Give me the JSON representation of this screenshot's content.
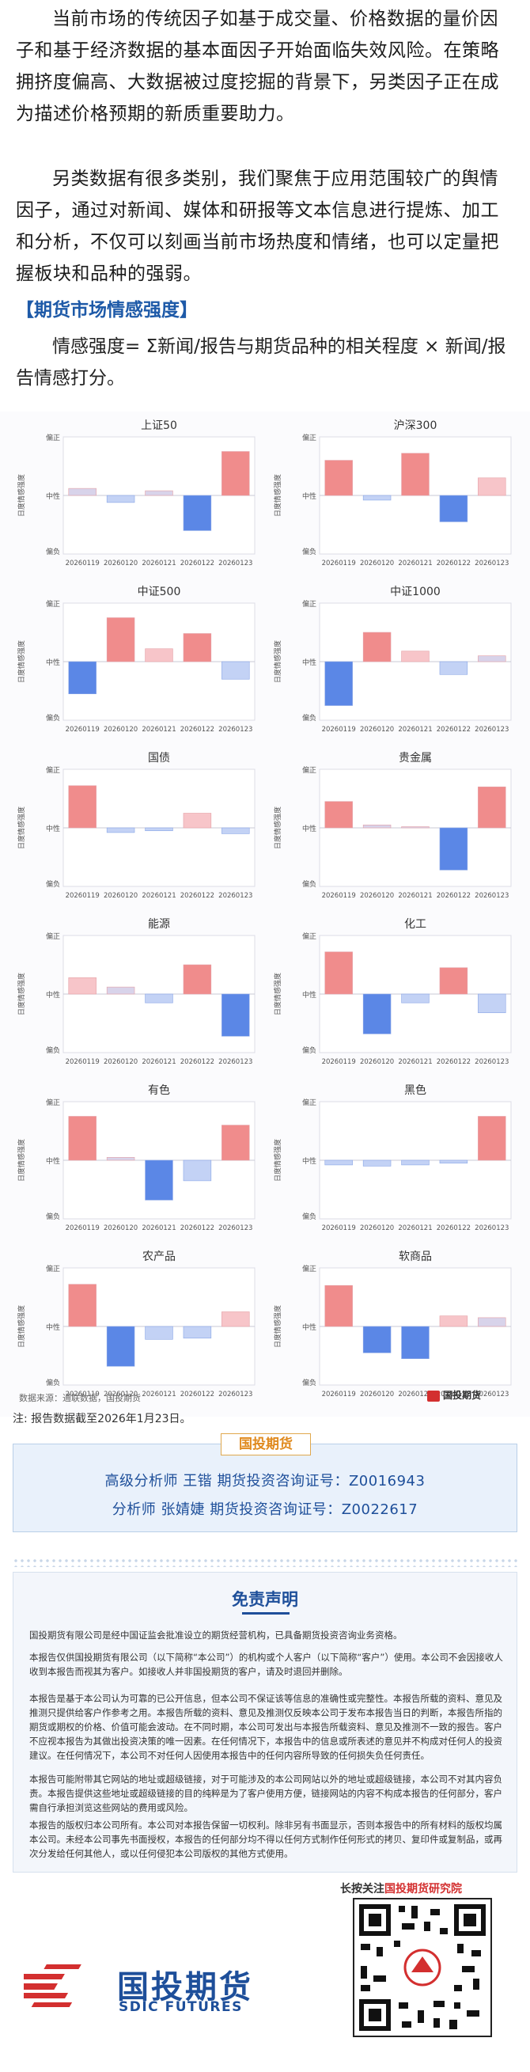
{
  "intro": {
    "p1": "当前市场的传统因子如基于成交量、价格数据的量价因子和基于经济数据的基本面因子开始面临失效风险。在策略拥挤度偏高、大数据被过度挖掘的背景下，另类因子正在成为描述价格预期的新质重要助力。",
    "p2": "另类数据有很多类别，我们聚焦于应用范围较广的舆情因子，通过对新闻、媒体和研报等文本信息进行提炼、加工和分析，不仅可以刻画当前市场热度和情绪，也可以定量把握板块和品种的强弱。",
    "section_title": "【期货市场情感强度】",
    "formula": "情感强度= Σ新闻/报告与期货品种的相关程度 × 新闻/报告情感打分。"
  },
  "axis_text": {
    "ylabel": "日度情感强度",
    "top": "偏正",
    "mid": "中性",
    "bottom": "偏负"
  },
  "colors": {
    "pos_strong": "#f08c8c",
    "pos_light": "#f7c5c9",
    "neg_strong": "#5b87e6",
    "neg_light": "#c3d2f5",
    "neutral_light": "#d8d3ea"
  },
  "chart_data": [
    {
      "type": "bar",
      "title": "上证50",
      "categories": [
        "20260119",
        "20260120",
        "20260121",
        "20260122",
        "20260123"
      ],
      "values": [
        0.12,
        -0.12,
        0.08,
        -0.6,
        0.75
      ]
    },
    {
      "type": "bar",
      "title": "沪深300",
      "categories": [
        "20260119",
        "20260120",
        "20260121",
        "20260122",
        "20260123"
      ],
      "values": [
        0.6,
        -0.08,
        0.72,
        -0.45,
        0.3
      ]
    },
    {
      "type": "bar",
      "title": "中证500",
      "categories": [
        "20260119",
        "20260120",
        "20260121",
        "20260122",
        "20260123"
      ],
      "values": [
        -0.55,
        0.75,
        0.22,
        0.48,
        -0.3
      ]
    },
    {
      "type": "bar",
      "title": "中证1000",
      "categories": [
        "20260119",
        "20260120",
        "20260121",
        "20260122",
        "20260123"
      ],
      "values": [
        -0.75,
        0.5,
        0.18,
        -0.22,
        0.1
      ]
    },
    {
      "type": "bar",
      "title": "国债",
      "categories": [
        "20260119",
        "20260120",
        "20260121",
        "20260122",
        "20260123"
      ],
      "values": [
        0.72,
        -0.08,
        -0.05,
        0.25,
        -0.1
      ]
    },
    {
      "type": "bar",
      "title": "贵金属",
      "categories": [
        "20260119",
        "20260120",
        "20260121",
        "20260122",
        "20260123"
      ],
      "values": [
        0.45,
        0.05,
        0.02,
        -0.72,
        0.7
      ]
    },
    {
      "type": "bar",
      "title": "能源",
      "categories": [
        "20260119",
        "20260120",
        "20260121",
        "20260122",
        "20260123"
      ],
      "values": [
        0.28,
        0.12,
        -0.15,
        0.5,
        -0.72
      ]
    },
    {
      "type": "bar",
      "title": "化工",
      "categories": [
        "20260119",
        "20260120",
        "20260121",
        "20260122",
        "20260123"
      ],
      "values": [
        0.72,
        -0.68,
        -0.15,
        0.45,
        -0.32
      ]
    },
    {
      "type": "bar",
      "title": "有色",
      "categories": [
        "20260119",
        "20260120",
        "20260121",
        "20260122",
        "20260123"
      ],
      "values": [
        0.75,
        0.05,
        -0.68,
        -0.35,
        0.6
      ]
    },
    {
      "type": "bar",
      "title": "黑色",
      "categories": [
        "20260119",
        "20260120",
        "20260121",
        "20260122",
        "20260123"
      ],
      "values": [
        -0.08,
        -0.1,
        -0.08,
        -0.05,
        0.75
      ]
    },
    {
      "type": "bar",
      "title": "农产品",
      "categories": [
        "20260119",
        "20260120",
        "20260121",
        "20260122",
        "20260123"
      ],
      "values": [
        0.72,
        -0.68,
        -0.22,
        -0.2,
        0.25
      ]
    },
    {
      "type": "bar",
      "title": "软商品",
      "categories": [
        "20260119",
        "20260120",
        "20260121",
        "20260122",
        "20260123"
      ],
      "values": [
        0.7,
        -0.45,
        -0.55,
        0.18,
        0.15
      ]
    }
  ],
  "footer": {
    "source": "数据来源：通联数据，国投期货",
    "brand_small": "国投期货",
    "note": "注: 报告数据截至2026年1月23日。",
    "analyst_tag": "国投期货",
    "analyst1": "高级分析师  王锴  期货投资咨询证号：Z0016943",
    "analyst2": "分析师  张婧婕  期货投资咨询证号：Z0022617",
    "disclaimer_title": "免责声明",
    "d1": "国投期货有限公司是经中国证监会批准设立的期货经营机构，已具备期货投资咨询业务资格。",
    "d2": "本报告仅供国投期货有限公司（以下简称“本公司”）的机构或个人客户（以下简称“客户”）使用。本公司不会因接收人收到本报告而视其为客户。如接收人并非国投期货的客户，请及时退回并删除。",
    "d3": "本报告是基于本公司认为可靠的已公开信息，但本公司不保证该等信息的准确性或完整性。本报告所载的资料、意见及推测只提供给客户作参考之用。本报告所载的资料、意见及推测仅反映本公司于发布本报告当日的判断，本报告所指的期货或期权的价格、价值可能会波动。在不同时期，本公司可发出与本报告所载资料、意见及推测不一致的报告。客户不应视本报告为其做出投资决策的唯一因素。在任何情况下，本报告中的信息或所表述的意见并不构成对任何人的投资建议。在任何情况下，本公司不对任何人因使用本报告中的任何内容所导致的任何损失负任何责任。",
    "d4": "本报告可能附带其它网站的地址或超级链接，对于可能涉及的本公司网站以外的地址或超级链接，本公司不对其内容负责。本报告提供这些地址或超级链接的目的纯粹是为了客户使用方便，链接网站的内容不构成本报告的任何部分，客户需自行承担浏览这些网站的费用或风险。",
    "d5": "本报告的版权归本公司所有。本公司对本报告保留一切权利。除非另有书面显示，否则本报告中的所有材料的版权均属本公司。未经本公司事先书面授权，本报告的任何部分均不得以任何方式制作任何形式的拷贝、复印件或复制品，或再次分发给任何其他人，或以任何侵犯本公司版权的其他方式使用。",
    "follow_prefix": "长按关注",
    "follow_name": "国投期货研究院",
    "logo_cn": "国投期货",
    "logo_en": "SDIC FUTURES"
  }
}
